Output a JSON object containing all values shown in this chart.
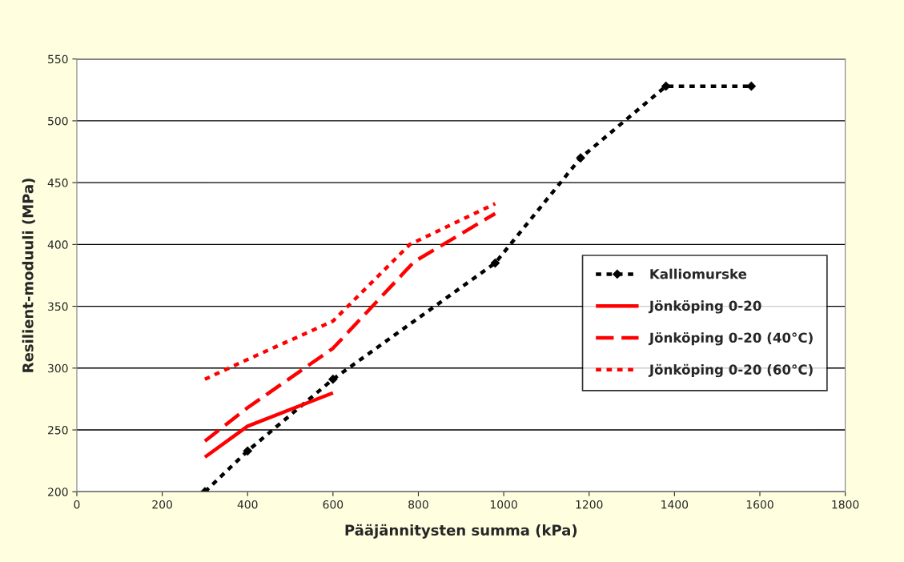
{
  "chart_data": {
    "type": "line",
    "xlabel": "Pääjännitysten summa (kPa)",
    "ylabel": "Resilient-moduuli (MPa)",
    "xlim": [
      0,
      1800
    ],
    "xticks": [
      0,
      200,
      400,
      600,
      800,
      1000,
      1200,
      1400,
      1600,
      1800
    ],
    "ylim": [
      200,
      550
    ],
    "yticks": [
      200,
      250,
      300,
      350,
      400,
      450,
      500,
      550
    ],
    "grid": "y",
    "legend": "right",
    "series": [
      {
        "name": "Kalliomurske",
        "color": "#000000",
        "line_style": "dotted",
        "marker": "diamond",
        "x": [
          300,
          400,
          600,
          980,
          1180,
          1380,
          1580
        ],
        "values": [
          200,
          233,
          291,
          385,
          470,
          528,
          528
        ]
      },
      {
        "name": "Jönköping 0-20",
        "color": "#ff0000",
        "line_style": "solid",
        "marker": "none",
        "x": [
          300,
          400,
          600
        ],
        "values": [
          228,
          253,
          280
        ]
      },
      {
        "name": "Jönköping 0-20 (40°C)",
        "color": "#ff0000",
        "line_style": "dashed",
        "marker": "none",
        "x": [
          300,
          400,
          600,
          790,
          980
        ],
        "values": [
          241,
          268,
          316,
          386,
          425
        ]
      },
      {
        "name": "Jönköping 0-20 (60°C)",
        "color": "#ff0000",
        "line_style": "dotted",
        "marker": "none",
        "x": [
          300,
          400,
          600,
          780,
          980
        ],
        "values": [
          291,
          307,
          338,
          400,
          433
        ]
      }
    ]
  }
}
